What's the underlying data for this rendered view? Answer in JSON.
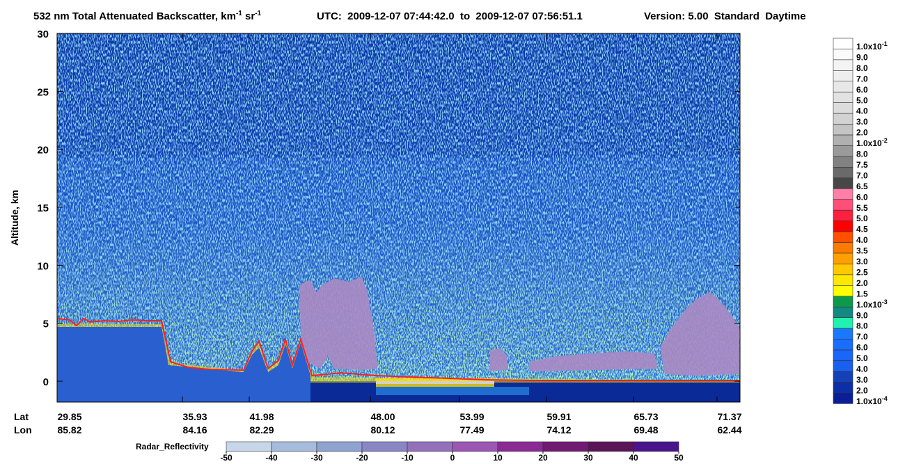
{
  "chart_data": {
    "type": "curtain",
    "title": {
      "main": "532 nm Total Attenuated Backscatter, km",
      "sup1": "-1",
      "mid": " sr",
      "sup2": "-1"
    },
    "utc": "UTC:  2009-12-07 07:44:42.0  to  2009-12-07 07:56:51.1",
    "version": "Version: 5.00  Standard  Daytime",
    "y_label": "Altitude, km",
    "ylim": [
      -1.8,
      30
    ],
    "yticks": [
      0,
      5,
      10,
      15,
      20,
      25,
      30
    ],
    "x_rows": [
      {
        "name": "Lat",
        "labels": [
          "29.85",
          "35.93",
          "41.98",
          "48.00",
          "53.99",
          "59.91",
          "65.73",
          "71.37"
        ]
      },
      {
        "name": "Lon",
        "labels": [
          "85.82",
          "84.16",
          "82.29",
          "80.12",
          "77.49",
          "74.12",
          "69.48",
          "62.44"
        ]
      }
    ],
    "colorbar": {
      "labels": [
        {
          "text": "1.0x10",
          "sup": "-1"
        },
        "9.0",
        "8.0",
        "7.0",
        "6.0",
        "5.0",
        "4.0",
        "3.0",
        "2.0",
        {
          "text": "1.0x10",
          "sup": "-2"
        },
        "8.0",
        "7.5",
        "7.0",
        "6.5",
        "6.0",
        "5.5",
        "5.0",
        "4.5",
        "4.0",
        "3.5",
        "3.0",
        "2.5",
        "2.0",
        "1.5",
        {
          "text": "1.0x10",
          "sup": "-3"
        },
        "9.0",
        "8.0",
        "7.0",
        "6.0",
        "5.0",
        "4.0",
        "3.0",
        "2.0",
        {
          "text": "1.0x10",
          "sup": "-4"
        }
      ],
      "colors": [
        "#ffffff",
        "#fafafa",
        "#f4f4f4",
        "#eeeeee",
        "#e8e8e8",
        "#e2e2e2",
        "#dcdcdc",
        "#d2d2d2",
        "#c4c4c4",
        "#b0b0b0",
        "#9a9a9a",
        "#828282",
        "#6a6a6a",
        "#474747",
        "#ff7fa8",
        "#ff4f78",
        "#ff2040",
        "#ff0000",
        "#ff5000",
        "#ff7a00",
        "#ffa000",
        "#ffc800",
        "#ffe800",
        "#ffff00",
        "#0c9a4a",
        "#128a80",
        "#20f0b0",
        "#1a78ff",
        "#1a6eff",
        "#1a66f8",
        "#1a60f0",
        "#1440b8",
        "#0c2ea8",
        "#0a1e98"
      ]
    },
    "radar": {
      "label": "Radar_Reflectivity",
      "ticks": [
        -50,
        -40,
        -30,
        -20,
        -10,
        0,
        10,
        20,
        30,
        40,
        50
      ],
      "colors": [
        "#c8d6ea",
        "#a6bcdc",
        "#8fa2d0",
        "#8a86c6",
        "#9470bc",
        "#9a56b2",
        "#8a2a94",
        "#701a72",
        "#5a1458",
        "#4a148c"
      ]
    }
  }
}
